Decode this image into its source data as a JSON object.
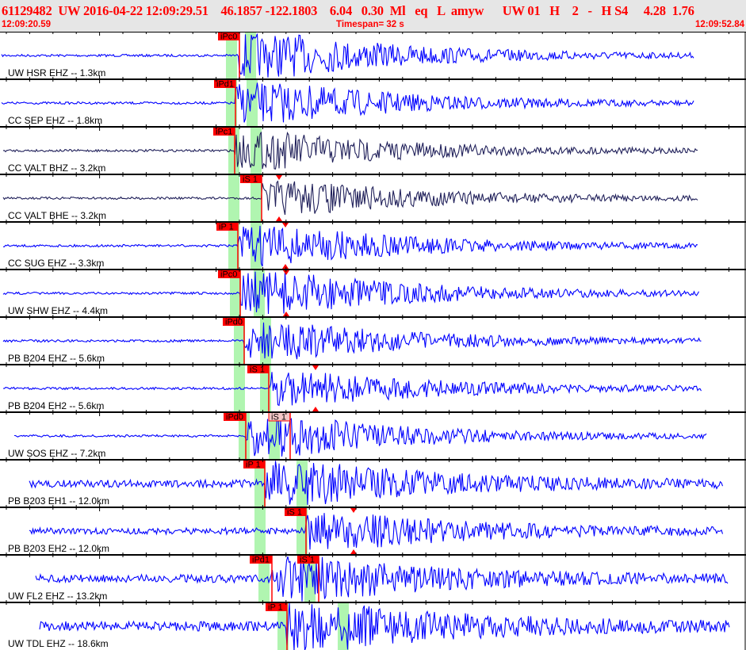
{
  "header": {
    "title": "61129482  UW 2016-04-22 12:09:29.51    46.1857 -122.1803    6.04   0.30  Ml   eq   L  amyw      UW 01   H    2   -   H S4     4.28  1.76",
    "start_time": "12:09:20.59",
    "timespan": "Timespan=  32 s",
    "end_time": "12:09:52.84"
  },
  "colors": {
    "trace": "#0000ff",
    "trace_dark": "#20205a",
    "pick": "#ff0000",
    "pick_light": "#f4c8c8",
    "window": "#b0f5b0"
  },
  "panels": [
    {
      "label": "UW HSR EHZ -- 1.3km",
      "picks": [
        "iPc0"
      ]
    },
    {
      "label": "CC SEP EHZ -- 1.8km",
      "picks": [
        "iPd1"
      ]
    },
    {
      "label": "CC VALT BHZ -- 3.2km",
      "picks": [
        "iPc1"
      ]
    },
    {
      "label": "CC VALT BHE -- 3.2km",
      "picks": [
        "iS 1"
      ]
    },
    {
      "label": "CC SUG EHZ -- 3.3km",
      "picks": [
        "iP 1"
      ]
    },
    {
      "label": "UW SHW EHZ -- 4.4km",
      "picks": [
        "iPc0"
      ]
    },
    {
      "label": "PB B204 EHZ -- 5.6km",
      "picks": [
        "iPd0"
      ]
    },
    {
      "label": "PB B204 EH2 -- 5.6km",
      "picks": [
        "iS 1"
      ]
    },
    {
      "label": "UW SOS EHZ -- 7.2km",
      "picks": [
        "iPd0",
        "iS 1"
      ]
    },
    {
      "label": "PB B203 EH1 -- 12.0km",
      "picks": [
        "iP 1"
      ]
    },
    {
      "label": "PB B203 EH2 -- 12.0km",
      "picks": [
        "iS 1"
      ]
    },
    {
      "label": "UW FL2 EHZ -- 13.2km",
      "picks": [
        "iPd1",
        "iS 1"
      ]
    },
    {
      "label": "UW TDL EHZ -- 18.6km",
      "picks": [
        "iP 1"
      ]
    }
  ]
}
